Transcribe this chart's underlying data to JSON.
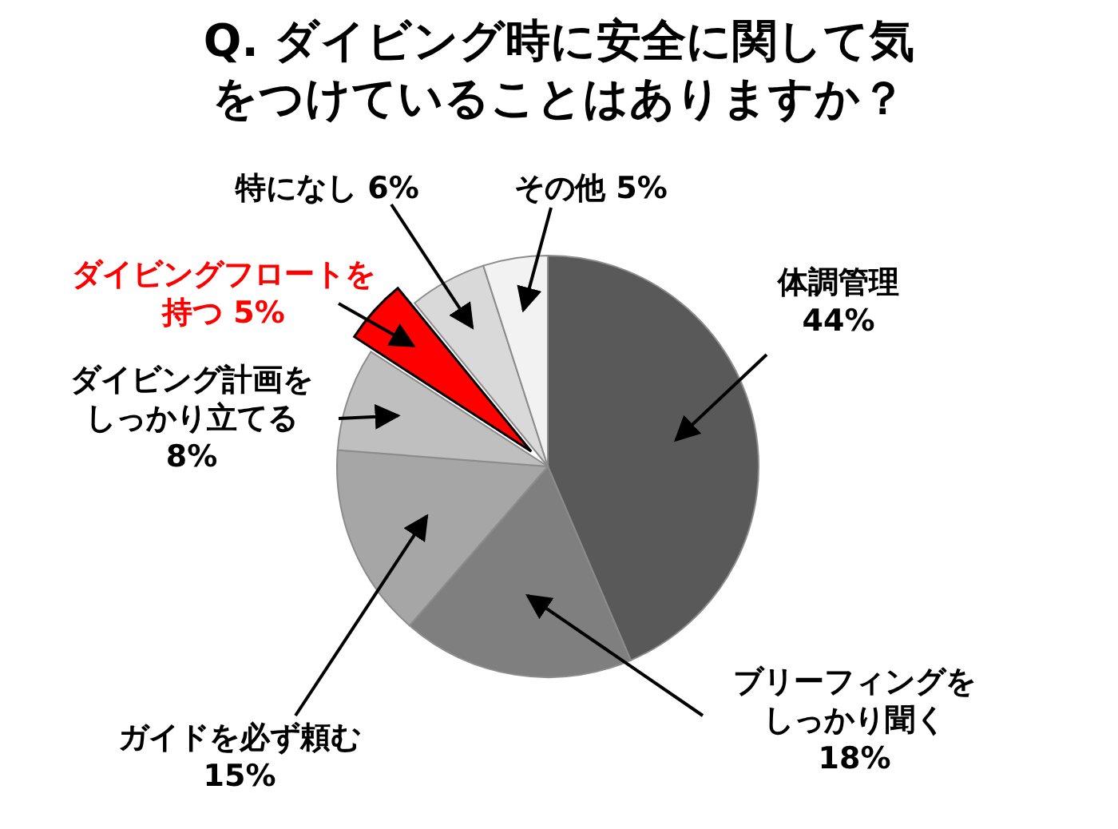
{
  "chart_data": {
    "type": "pie",
    "title": "Q. ダイビング時に安全に関して気をつけていることはありますか？",
    "categories": [
      "体調管理",
      "ブリーフィングをしっかり聞く",
      "ガイドを必ず頼む",
      "ダイビング計画をしっかり立てる",
      "ダイビングフロートを持つ",
      "特になし",
      "その他"
    ],
    "values": [
      44,
      18,
      15,
      8,
      5,
      6,
      5
    ],
    "value_labels": [
      "44%",
      "18%",
      "15%",
      "8%",
      "5%",
      "6%",
      "5%"
    ],
    "colors": [
      "#595959",
      "#7f7f7f",
      "#a6a6a6",
      "#bfbfbf",
      "#ff0000",
      "#d9d9d9",
      "#f2f2f2"
    ]
  }
}
